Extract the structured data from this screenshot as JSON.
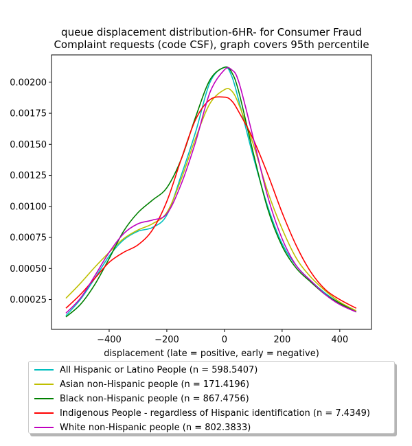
{
  "chart_data": {
    "type": "line",
    "title": [
      "queue displacement distribution-6HR-  for Consumer Fraud",
      "Complaint  requests (code CSF), graph covers 95th percentile"
    ],
    "xlabel": "displacement (late = positive, early = negative)",
    "ylabel": "",
    "xlim": [
      -600,
      510
    ],
    "ylim": [
      1e-05,
      0.00222
    ],
    "xticks": [
      -400,
      -200,
      0,
      200,
      400
    ],
    "xtick_labels": [
      "−400",
      "−200",
      "0",
      "200",
      "400"
    ],
    "yticks": [
      0.00025,
      0.0005,
      0.00075,
      0.001,
      0.00125,
      0.0015,
      0.00175,
      0.002
    ],
    "ytick_labels": [
      "0.00025",
      "0.00050",
      "0.00075",
      "0.00100",
      "0.00125",
      "0.00150",
      "0.00175",
      "0.00200"
    ],
    "grid": false,
    "legend_position": "below",
    "series": [
      {
        "name": "All Hispanic or Latino People (n = 598.5407)",
        "color": "#00bfbf",
        "x": [
          -550,
          -500,
          -450,
          -400,
          -350,
          -300,
          -250,
          -200,
          -150,
          -100,
          -50,
          0,
          25,
          50,
          100,
          150,
          200,
          250,
          300,
          350,
          400,
          457
        ],
        "y": [
          0.00012,
          0.00025,
          0.00042,
          0.0006,
          0.00073,
          0.0008,
          0.00083,
          0.00093,
          0.00125,
          0.0016,
          0.002,
          0.00212,
          0.00205,
          0.00185,
          0.0014,
          0.001,
          0.0007,
          0.00052,
          0.0004,
          0.0003,
          0.00022,
          0.00015
        ]
      },
      {
        "name": "Asian non-Hispanic people (n = 171.4196)",
        "color": "#bfbf00",
        "x": [
          -550,
          -500,
          -450,
          -400,
          -350,
          -300,
          -250,
          -200,
          -150,
          -100,
          -50,
          0,
          25,
          50,
          100,
          150,
          200,
          250,
          300,
          350,
          400,
          457
        ],
        "y": [
          0.00026,
          0.00038,
          0.00051,
          0.00063,
          0.00074,
          0.00081,
          0.00086,
          0.00095,
          0.00122,
          0.00155,
          0.00183,
          0.00194,
          0.00193,
          0.00182,
          0.0015,
          0.00112,
          0.00082,
          0.00058,
          0.00043,
          0.00032,
          0.00023,
          0.00016
        ]
      },
      {
        "name": "Black non-Hispanic people (n = 867.4756)",
        "color": "#008000",
        "x": [
          -550,
          -500,
          -450,
          -400,
          -350,
          -300,
          -250,
          -200,
          -150,
          -100,
          -50,
          0,
          25,
          50,
          100,
          150,
          200,
          250,
          300,
          350,
          400,
          457
        ],
        "y": [
          0.00011,
          0.00021,
          0.00037,
          0.00058,
          0.0008,
          0.00095,
          0.00105,
          0.00115,
          0.00138,
          0.00172,
          0.00202,
          0.00212,
          0.00208,
          0.00192,
          0.00143,
          0.00098,
          0.00068,
          0.0005,
          0.00039,
          0.00029,
          0.00022,
          0.00015
        ]
      },
      {
        "name": "Indigenous People - regardless of Hispanic identification (n = 7.4349)",
        "color": "#ff0000",
        "x": [
          -550,
          -500,
          -450,
          -400,
          -350,
          -300,
          -250,
          -200,
          -150,
          -100,
          -50,
          0,
          25,
          50,
          100,
          150,
          200,
          250,
          300,
          350,
          400,
          457
        ],
        "y": [
          0.00018,
          0.00029,
          0.00042,
          0.00055,
          0.00063,
          0.00069,
          0.00081,
          0.00104,
          0.00138,
          0.0017,
          0.00186,
          0.00188,
          0.00185,
          0.00176,
          0.00154,
          0.00126,
          0.00095,
          0.00068,
          0.00047,
          0.00033,
          0.00025,
          0.00018
        ]
      },
      {
        "name": "White non-Hispanic people (n = 802.3833)",
        "color": "#bf00bf",
        "x": [
          -550,
          -500,
          -450,
          -400,
          -350,
          -300,
          -250,
          -200,
          -150,
          -100,
          -50,
          0,
          25,
          50,
          100,
          150,
          200,
          250,
          300,
          350,
          400,
          457
        ],
        "y": [
          0.00014,
          0.00026,
          0.00044,
          0.00063,
          0.00078,
          0.00086,
          0.00089,
          0.00094,
          0.00118,
          0.00152,
          0.00192,
          0.0021,
          0.0021,
          0.002,
          0.00155,
          0.00108,
          0.00074,
          0.00052,
          0.0004,
          0.00029,
          0.00021,
          0.00015
        ]
      }
    ]
  }
}
